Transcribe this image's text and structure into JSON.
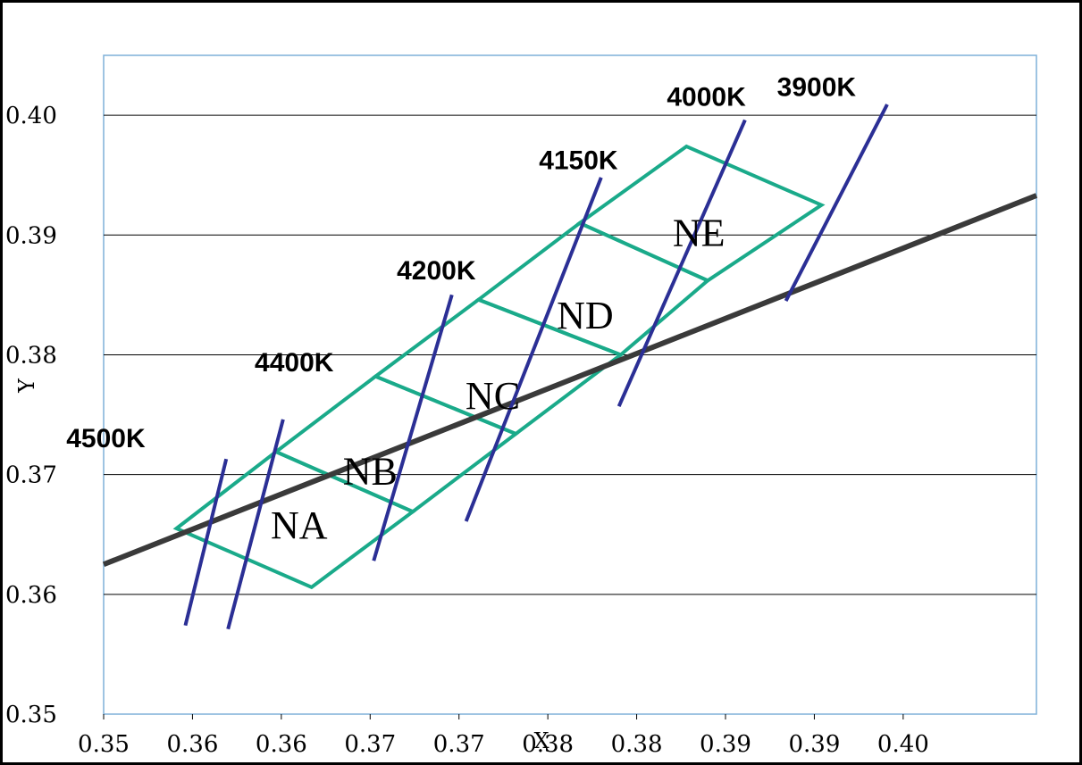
{
  "chart_data": {
    "type": "scatter",
    "xlabel": "X",
    "ylabel": "Y",
    "xlim": [
      0.35,
      0.4025
    ],
    "ylim": [
      0.35,
      0.405
    ],
    "x_ticks": [
      {
        "value": 0.35,
        "label": "0.35"
      },
      {
        "value": 0.355,
        "label": "0.36"
      },
      {
        "value": 0.36,
        "label": "0.36"
      },
      {
        "value": 0.365,
        "label": "0.37"
      },
      {
        "value": 0.37,
        "label": "0.37"
      },
      {
        "value": 0.375,
        "label": "0.38"
      },
      {
        "value": 0.38,
        "label": "0.38"
      },
      {
        "value": 0.385,
        "label": "0.39"
      },
      {
        "value": 0.39,
        "label": "0.39"
      },
      {
        "value": 0.395,
        "label": "0.40"
      }
    ],
    "y_ticks": [
      {
        "value": 0.35,
        "label": "0.35"
      },
      {
        "value": 0.36,
        "label": "0.36"
      },
      {
        "value": 0.37,
        "label": "0.37"
      },
      {
        "value": 0.38,
        "label": "0.38"
      },
      {
        "value": 0.39,
        "label": "0.39"
      },
      {
        "value": 0.4,
        "label": "0.40"
      }
    ],
    "grid": {
      "horizontal": true,
      "vertical": false
    },
    "colors": {
      "bins": "#1aaa8a",
      "locus": "#3a3a3a",
      "cct": "#2b2f95",
      "grid": "#000000",
      "frame": "#7fb0d8"
    },
    "planckian_locus": [
      [
        0.35,
        0.3625
      ],
      [
        0.4025,
        0.3933
      ]
    ],
    "bins": [
      {
        "name": "NA",
        "label_at": [
          0.361,
          0.3647
        ],
        "corners": [
          [
            0.3541,
            0.3655
          ],
          [
            0.3597,
            0.3719
          ],
          [
            0.3674,
            0.3669
          ],
          [
            0.3617,
            0.3606
          ]
        ]
      },
      {
        "name": "NB",
        "label_at": [
          0.365,
          0.3692
        ],
        "corners": [
          [
            0.3597,
            0.3719
          ],
          [
            0.3653,
            0.3782
          ],
          [
            0.3732,
            0.3734
          ],
          [
            0.3674,
            0.3669
          ]
        ]
      },
      {
        "name": "NC",
        "label_at": [
          0.3719,
          0.3755
        ],
        "corners": [
          [
            0.3653,
            0.3782
          ],
          [
            0.3711,
            0.3846
          ],
          [
            0.3791,
            0.38
          ],
          [
            0.3732,
            0.3734
          ]
        ]
      },
      {
        "name": "ND",
        "label_at": [
          0.3771,
          0.3822
        ],
        "corners": [
          [
            0.3711,
            0.3846
          ],
          [
            0.3768,
            0.391
          ],
          [
            0.384,
            0.3862
          ],
          [
            0.3791,
            0.38
          ]
        ]
      },
      {
        "name": "NE",
        "label_at": [
          0.3835,
          0.3891
        ],
        "corners": [
          [
            0.3768,
            0.391
          ],
          [
            0.3828,
            0.3974
          ],
          [
            0.3904,
            0.3925
          ],
          [
            0.384,
            0.3862
          ]
        ]
      }
    ],
    "cct_lines": [
      {
        "name": "4500K",
        "label_at": [
          0.3479,
          0.3723
        ],
        "start": [
          0.3546,
          0.3574
        ],
        "end": [
          0.3569,
          0.3713
        ]
      },
      {
        "name": "4400K",
        "label_at": [
          0.3585,
          0.3786
        ],
        "start": [
          0.357,
          0.3571
        ],
        "end": [
          0.3601,
          0.3746
        ]
      },
      {
        "name": "4200K",
        "label_at": [
          0.3665,
          0.3863
        ],
        "start": [
          0.3652,
          0.3628
        ],
        "end": [
          0.3696,
          0.385
        ]
      },
      {
        "name": "4150K",
        "label_at": [
          0.3745,
          0.3955
        ],
        "start": [
          0.3704,
          0.3661
        ],
        "end": [
          0.378,
          0.3948
        ]
      },
      {
        "name": "4000K",
        "label_at": [
          0.3817,
          0.4008
        ],
        "start": [
          0.379,
          0.3757
        ],
        "end": [
          0.3861,
          0.3996
        ]
      },
      {
        "name": "3900K",
        "label_at": [
          0.3879,
          0.4016
        ],
        "start": [
          0.3884,
          0.3845
        ],
        "end": [
          0.3941,
          0.4009
        ]
      }
    ]
  }
}
